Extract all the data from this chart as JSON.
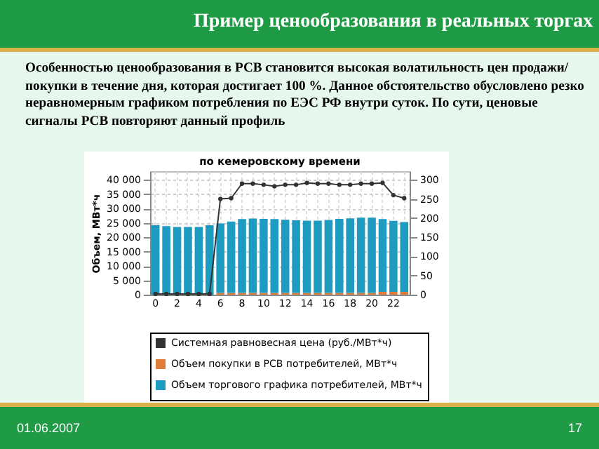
{
  "chart_data": {
    "type": "bar",
    "title": "Пример ценообразования в реальных торгах",
    "subtitle": "по кемеровскому времени",
    "ylabel": "Объем, МВт*ч",
    "annotations": [
      "Особенностью ценообразования в РСВ становится высокая волатильность цен продажи/покупки в течение дня, которая достигает 100 %. Данное обстоятельство обусловлено резко неравномерным графиком потребления по ЕЭС РФ внутри суток. По сути, ценовые сигналы РСВ повторяют данный профиль",
      "01.06.2007",
      "17"
    ],
    "categories": [
      "0",
      null,
      "2",
      null,
      "4",
      null,
      "6",
      null,
      "8",
      null,
      "10",
      null,
      "12",
      null,
      "14",
      null,
      "16",
      null,
      "18",
      null,
      "20",
      null,
      "22",
      null
    ],
    "stacked": true,
    "series": [
      {
        "name": "Системная равновесная цена (руб./МВт*ч)",
        "type": "line",
        "axis": "y2",
        "color": "#333333",
        "values": [
          2,
          2,
          2,
          2,
          2,
          2,
          250,
          252,
          290,
          290,
          287,
          283,
          287,
          287,
          292,
          290,
          290,
          287,
          287,
          290,
          290,
          292,
          260,
          252
        ]
      },
      {
        "name": "Объем покупки в РСВ потребителей, МВт*ч",
        "color": "#e07b39",
        "values": [
          null,
          null,
          null,
          null,
          null,
          null,
          600,
          600,
          600,
          600,
          600,
          600,
          600,
          600,
          600,
          600,
          600,
          600,
          600,
          600,
          600,
          1000,
          1000,
          1000
        ]
      },
      {
        "name": "Объем торгового графика потребителей, МВт*ч",
        "color": "#1e9bc0",
        "values": [
          24200,
          23900,
          23600,
          23600,
          23600,
          24200,
          24200,
          24900,
          25700,
          25900,
          25800,
          25700,
          25500,
          25300,
          25200,
          25200,
          25400,
          25800,
          26000,
          26200,
          26200,
          25300,
          24700,
          24300
        ]
      }
    ],
    "ylim": [
      0,
      43000
    ],
    "yticks": [
      {
        "value": 0,
        "label": "0"
      },
      {
        "value": 5000,
        "label": "5 000"
      },
      {
        "value": 10000,
        "label": "10 000"
      },
      {
        "value": 15000,
        "label": "15 000"
      },
      {
        "value": 20000,
        "label": "20 000"
      },
      {
        "value": 25000,
        "label": "25 000"
      },
      {
        "value": 30000,
        "label": "30 000"
      },
      {
        "value": 35000,
        "label": "35 000"
      },
      {
        "value": 40000,
        "label": "40 000"
      }
    ],
    "y2lim": [
      0,
      322.5
    ],
    "y2ticks": [
      0,
      50,
      100,
      150,
      200,
      250,
      300
    ],
    "grid": true,
    "legend": "bottom",
    "marker": "circle",
    "line_style": "solid"
  }
}
